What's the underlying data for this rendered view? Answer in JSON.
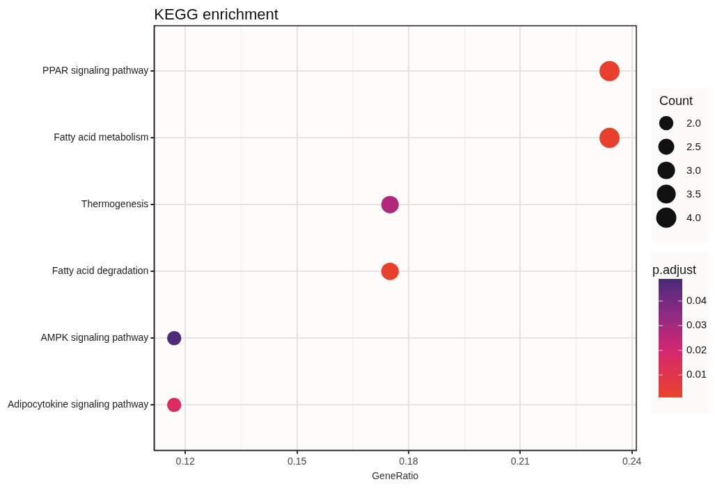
{
  "chart_data": {
    "type": "bubble",
    "title": "KEGG enrichment",
    "xlabel": "GeneRatio",
    "legend_title": "Count",
    "clabel": "p.adjust",
    "orientation": "horizontal",
    "categories": [
      "PPAR signaling pathway",
      "Fatty acid metabolism",
      "Thermogenesis",
      "Fatty acid degradation",
      "AMPK signaling pathway",
      "Adipocytokine signaling pathway"
    ],
    "values": [
      0.234,
      0.234,
      0.175,
      0.175,
      0.117,
      0.117
    ],
    "sizes": [
      4,
      4,
      3,
      3,
      2,
      2
    ],
    "size_legend": [
      {
        "value": 2,
        "label": "2.0"
      },
      {
        "value": 2.5,
        "label": "2.5"
      },
      {
        "value": 3,
        "label": "3.0"
      },
      {
        "value": 3.5,
        "label": "3.5"
      },
      {
        "value": 4,
        "label": "4.0"
      }
    ],
    "cvalues": [
      0.002,
      0.002,
      0.028,
      0.002,
      0.048,
      0.016
    ],
    "clim": [
      0.001,
      0.049
    ],
    "cticks": [
      0.01,
      0.02,
      0.03,
      0.04
    ],
    "xlim": [
      0.1116,
      0.2412
    ],
    "xticks": [
      0.12,
      {
        "value": 0.135,
        "label": null
      },
      0.15,
      {
        "value": 0.165,
        "label": null
      },
      0.18,
      {
        "value": 0.195,
        "label": null
      },
      0.21,
      {
        "value": 0.225,
        "label": null
      },
      0.24
    ],
    "grid": true
  }
}
